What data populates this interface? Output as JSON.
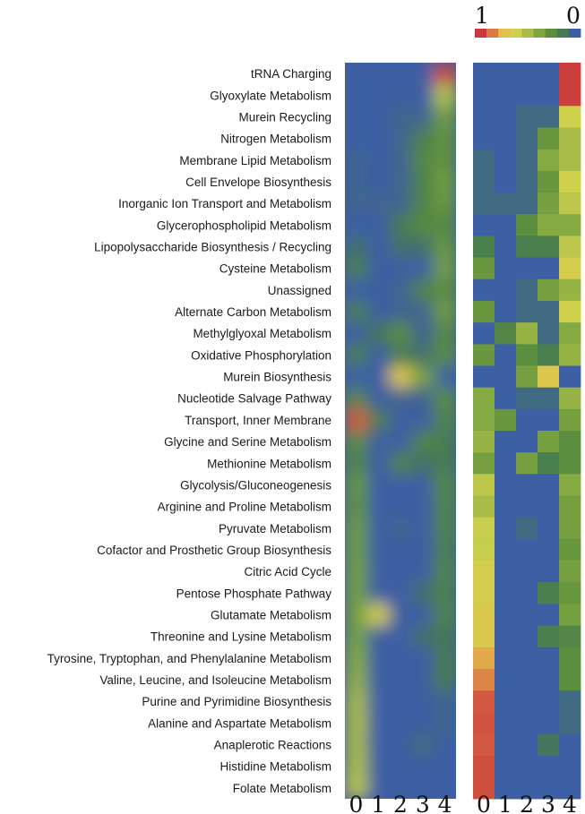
{
  "chart_data": {
    "type": "heatmap",
    "colorscale": {
      "max_label": "1",
      "min_label": "0",
      "colors": [
        "#c8383c",
        "#dc7a45",
        "#e3c04e",
        "#cfd14d",
        "#a9bb48",
        "#7ea640",
        "#5b8e3f",
        "#457a52",
        "#3d5fa3"
      ]
    },
    "x_ticks": [
      "0",
      "1",
      "2",
      "3",
      "4"
    ],
    "rows": [
      "tRNA Charging",
      "Glyoxylate Metabolism",
      "Murein Recycling",
      "Nitrogen Metabolism",
      "Membrane Lipid Metabolism",
      "Cell Envelope Biosynthesis",
      "Inorganic Ion Transport and Metabolism",
      "Glycerophospholipid Metabolism",
      "Lipopolysaccharide Biosynthesis / Recycling",
      "Cysteine Metabolism",
      "Unassigned",
      "Alternate Carbon Metabolism",
      "Methylglyoxal Metabolism",
      "Oxidative Phosphorylation",
      "Murein Biosynthesis",
      "Nucleotide Salvage Pathway",
      "Transport, Inner Membrane",
      "Glycine and Serine Metabolism",
      "Methionine Metabolism",
      "Glycolysis/Gluconeogenesis",
      "Arginine and Proline Metabolism",
      "Pyruvate Metabolism",
      "Cofactor and Prosthetic Group Biosynthesis",
      "Citric Acid Cycle",
      "Pentose Phosphate Pathway",
      "Glutamate Metabolism",
      "Threonine and Lysine Metabolism",
      "Tyrosine, Tryptophan, and Phenylalanine Metabolism",
      "Valine, Leucine, and Isoleucine Metabolism",
      "Purine and Pyrimidine Biosynthesis",
      "Alanine and Aspartate Metabolism",
      "Anaplerotic Reactions",
      "Histidine Metabolism",
      "Folate Metabolism"
    ],
    "matrix": [
      [
        0.0,
        0.0,
        0.0,
        0.0,
        0.98
      ],
      [
        0.0,
        0.0,
        0.0,
        0.0,
        0.98
      ],
      [
        0.0,
        0.0,
        0.05,
        0.05,
        0.6
      ],
      [
        0.0,
        0.0,
        0.05,
        0.3,
        0.5
      ],
      [
        0.05,
        0.0,
        0.05,
        0.4,
        0.5
      ],
      [
        0.05,
        0.0,
        0.05,
        0.3,
        0.6
      ],
      [
        0.05,
        0.05,
        0.05,
        0.35,
        0.55
      ],
      [
        0.0,
        0.0,
        0.25,
        0.4,
        0.4
      ],
      [
        0.15,
        0.0,
        0.15,
        0.15,
        0.55
      ],
      [
        0.3,
        0.0,
        0.0,
        0.0,
        0.62
      ],
      [
        0.0,
        0.0,
        0.05,
        0.35,
        0.45
      ],
      [
        0.3,
        0.0,
        0.05,
        0.05,
        0.6
      ],
      [
        0.0,
        0.2,
        0.45,
        0.05,
        0.4
      ],
      [
        0.3,
        0.0,
        0.25,
        0.15,
        0.45
      ],
      [
        0.0,
        0.0,
        0.35,
        0.65,
        0.0
      ],
      [
        0.4,
        0.0,
        0.05,
        0.05,
        0.45
      ],
      [
        0.4,
        0.3,
        0.0,
        0.0,
        0.35
      ],
      [
        0.45,
        0.0,
        0.0,
        0.35,
        0.25
      ],
      [
        0.35,
        0.0,
        0.35,
        0.15,
        0.25
      ],
      [
        0.55,
        0.0,
        0.0,
        0.0,
        0.4
      ],
      [
        0.5,
        0.0,
        0.0,
        0.0,
        0.35
      ],
      [
        0.58,
        0.0,
        0.05,
        0.0,
        0.35
      ],
      [
        0.58,
        0.0,
        0.0,
        0.0,
        0.3
      ],
      [
        0.62,
        0.0,
        0.0,
        0.0,
        0.35
      ],
      [
        0.62,
        0.0,
        0.0,
        0.15,
        0.3
      ],
      [
        0.64,
        0.0,
        0.0,
        0.0,
        0.35
      ],
      [
        0.64,
        0.0,
        0.0,
        0.15,
        0.2
      ],
      [
        0.72,
        0.0,
        0.0,
        0.0,
        0.25
      ],
      [
        0.78,
        0.0,
        0.0,
        0.0,
        0.25
      ],
      [
        0.9,
        0.0,
        0.0,
        0.0,
        0.05
      ],
      [
        0.92,
        0.0,
        0.0,
        0.0,
        0.05
      ],
      [
        0.9,
        0.0,
        0.0,
        0.1,
        0.0
      ],
      [
        0.93,
        0.0,
        0.0,
        0.0,
        0.0
      ],
      [
        0.93,
        0.0,
        0.0,
        0.0,
        0.0
      ]
    ],
    "smoothed_panel_highlights": [
      {
        "row": 0,
        "col": 4,
        "value": 0.95
      },
      {
        "row": 16,
        "col": 0,
        "value": 0.9
      },
      {
        "row": 14,
        "col": 2,
        "value": 0.65
      },
      {
        "row": 25,
        "col": 1,
        "value": 0.62
      },
      {
        "row": 33,
        "col": 0,
        "value": 0.55
      }
    ]
  }
}
